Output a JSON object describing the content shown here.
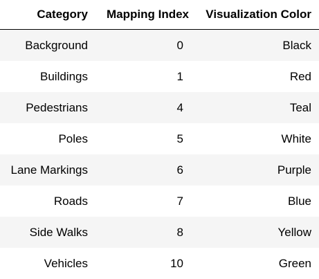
{
  "table": {
    "columns": [
      "Category",
      "Mapping Index",
      "Visualization Color"
    ],
    "rows": [
      {
        "category": "Background",
        "index": "0",
        "color": "Black"
      },
      {
        "category": "Buildings",
        "index": "1",
        "color": "Red"
      },
      {
        "category": "Pedestrians",
        "index": "4",
        "color": "Teal"
      },
      {
        "category": "Poles",
        "index": "5",
        "color": "White"
      },
      {
        "category": "Lane Markings",
        "index": "6",
        "color": "Purple"
      },
      {
        "category": "Roads",
        "index": "7",
        "color": "Blue"
      },
      {
        "category": "Side Walks",
        "index": "8",
        "color": "Yellow"
      },
      {
        "category": "Vehicles",
        "index": "10",
        "color": "Green"
      }
    ]
  },
  "colors": {
    "stripe": "#f5f5f5",
    "header_rule": "#000000"
  }
}
